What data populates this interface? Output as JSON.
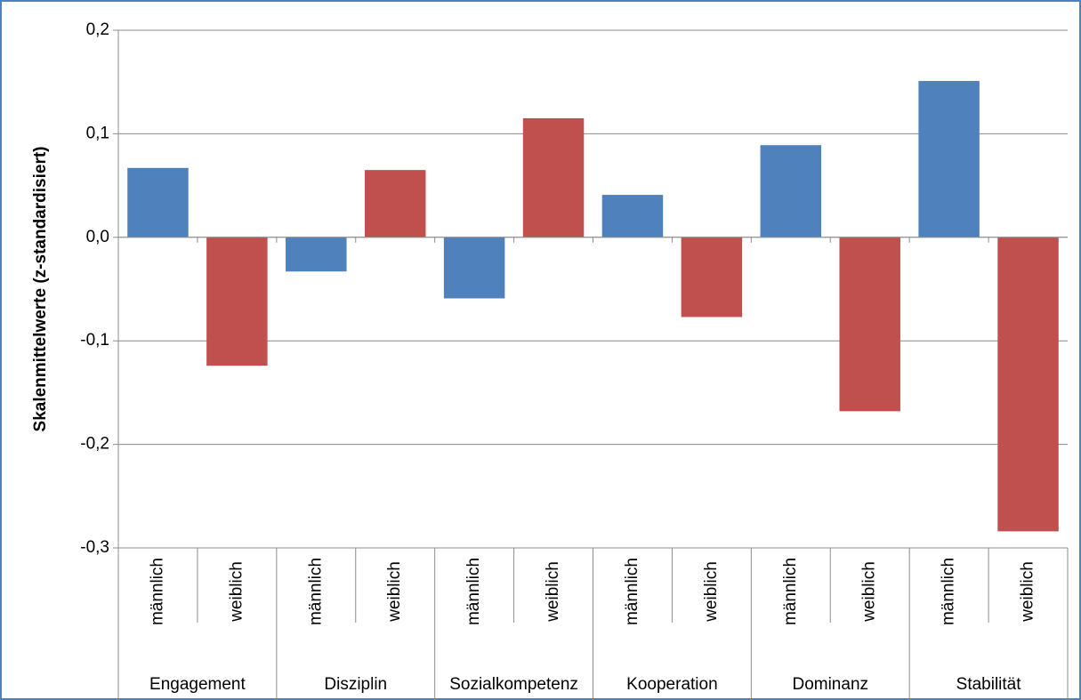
{
  "chart_data": {
    "type": "bar",
    "y_label": "Skalenmittelwerte (z-standardisiert)",
    "groups": [
      "Engagement",
      "Disziplin",
      "Sozialkompetenz",
      "Kooperation",
      "Dominanz",
      "Stabilität"
    ],
    "series": [
      {
        "name": "männlich",
        "color": "#4f81bd",
        "values": [
          0.067,
          -0.033,
          -0.059,
          0.041,
          0.089,
          0.151
        ]
      },
      {
        "name": "weiblich",
        "color": "#c0504d",
        "values": [
          -0.124,
          0.065,
          0.115,
          -0.077,
          -0.168,
          -0.284
        ]
      }
    ],
    "ylim": [
      -0.3,
      0.2
    ],
    "yticks": [
      {
        "value": -0.3,
        "label": "-0,3"
      },
      {
        "value": -0.2,
        "label": "-0,2"
      },
      {
        "value": -0.1,
        "label": "-0,1"
      },
      {
        "value": 0,
        "label": "0,0"
      },
      {
        "value": 0.1,
        "label": "0,1"
      },
      {
        "value": 0.2,
        "label": "0,2"
      }
    ],
    "grid": true
  }
}
